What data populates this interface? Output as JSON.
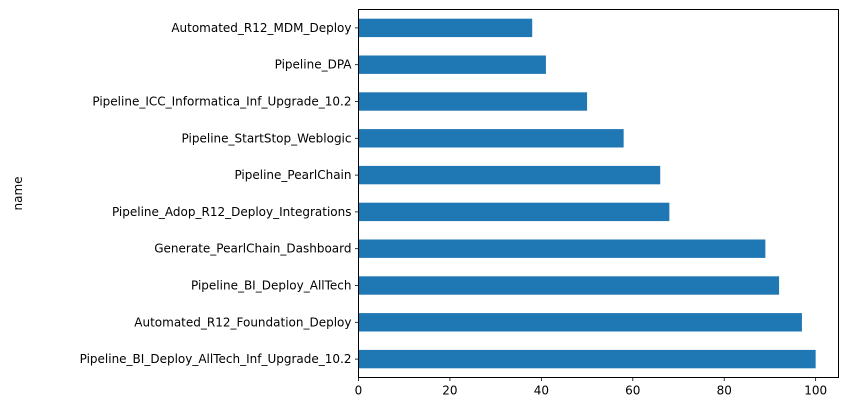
{
  "chart_data": {
    "type": "bar",
    "orientation": "horizontal",
    "categories": [
      "Pipeline_BI_Deploy_AllTech_Inf_Upgrade_10.2",
      "Automated_R12_Foundation_Deploy",
      "Pipeline_BI_Deploy_AllTech",
      "Generate_PearlChain_Dashboard",
      "Pipeline_Adop_R12_Deploy_Integrations",
      "Pipeline_PearlChain",
      "Pipeline_StartStop_Weblogic",
      "Pipeline_ICC_Informatica_Inf_Upgrade_10.2",
      "Pipeline_DPA",
      "Automated_R12_MDM_Deploy"
    ],
    "values": [
      100,
      97,
      92,
      89,
      68,
      66,
      58,
      50,
      41,
      38
    ],
    "xlabel": "",
    "ylabel": "name",
    "xlim": [
      0,
      105
    ],
    "xticks": [
      0,
      20,
      40,
      60,
      80,
      100
    ],
    "bar_color": "#1f77b4",
    "grid": false,
    "legend": "none"
  }
}
